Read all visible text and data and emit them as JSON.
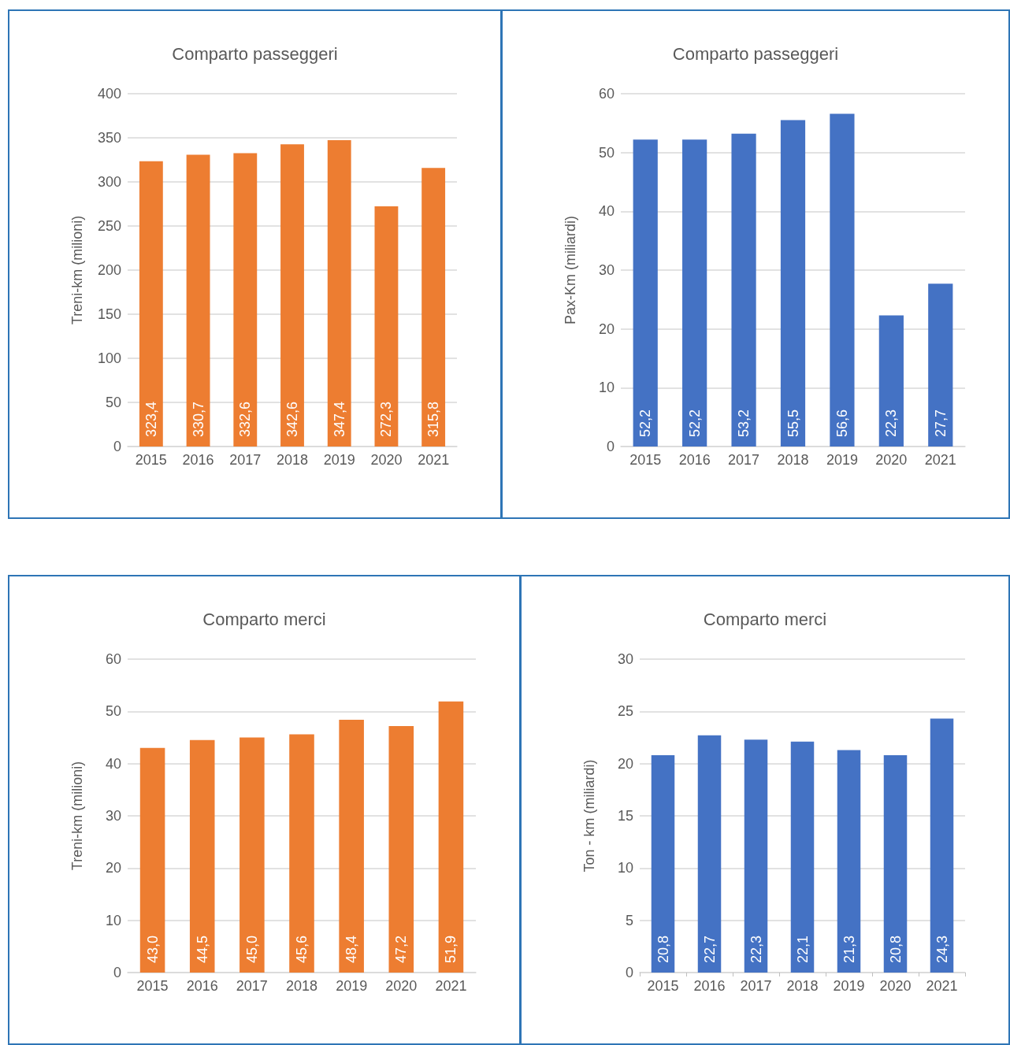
{
  "chart_data": [
    {
      "type": "bar",
      "title": "Comparto passeggeri",
      "ylabel": "Treni-km (milioni)",
      "categories": [
        "2015",
        "2016",
        "2017",
        "2018",
        "2019",
        "2020",
        "2021"
      ],
      "values": [
        323.4,
        330.7,
        332.6,
        342.6,
        347.4,
        272.3,
        315.8
      ],
      "value_labels": [
        "323,4",
        "330,7",
        "332,6",
        "342,6",
        "347,4",
        "272,3",
        "315,8"
      ],
      "color": "#ed7d31",
      "ylim": [
        0,
        400
      ],
      "yticks": [
        0,
        50,
        100,
        150,
        200,
        250,
        300,
        350,
        400
      ],
      "grid": "y"
    },
    {
      "type": "bar",
      "title": "Comparto passeggeri",
      "ylabel": "Pax-Km (miliardi)",
      "categories": [
        "2015",
        "2016",
        "2017",
        "2018",
        "2019",
        "2020",
        "2021"
      ],
      "values": [
        52.2,
        52.2,
        53.2,
        55.5,
        56.6,
        22.3,
        27.7
      ],
      "value_labels": [
        "52,2",
        "52,2",
        "53,2",
        "55,5",
        "56,6",
        "22,3",
        "27,7"
      ],
      "color": "#4472c4",
      "ylim": [
        0,
        60
      ],
      "yticks": [
        0,
        10,
        20,
        30,
        40,
        50,
        60
      ],
      "grid": "y"
    },
    {
      "type": "bar",
      "title": "Comparto merci",
      "ylabel": "Treni-km (milioni)",
      "categories": [
        "2015",
        "2016",
        "2017",
        "2018",
        "2019",
        "2020",
        "2021"
      ],
      "values": [
        43.0,
        44.5,
        45.0,
        45.6,
        48.4,
        47.2,
        51.9
      ],
      "value_labels": [
        "43,0",
        "44,5",
        "45,0",
        "45,6",
        "48,4",
        "47,2",
        "51,9"
      ],
      "color": "#ed7d31",
      "ylim": [
        0,
        60
      ],
      "yticks": [
        0,
        10,
        20,
        30,
        40,
        50,
        60
      ],
      "grid": "y"
    },
    {
      "type": "bar",
      "title": "Comparto merci",
      "ylabel": "Ton - km (miliardi)",
      "categories": [
        "2015",
        "2016",
        "2017",
        "2018",
        "2019",
        "2020",
        "2021"
      ],
      "values": [
        20.8,
        22.7,
        22.3,
        22.1,
        21.3,
        20.8,
        24.3
      ],
      "value_labels": [
        "20,8",
        "22,7",
        "22,3",
        "22,1",
        "21,3",
        "20,8",
        "24,3"
      ],
      "color": "#4472c4",
      "ylim": [
        0,
        30
      ],
      "yticks": [
        0,
        5,
        10,
        15,
        20,
        25,
        30
      ],
      "grid": "y"
    }
  ]
}
